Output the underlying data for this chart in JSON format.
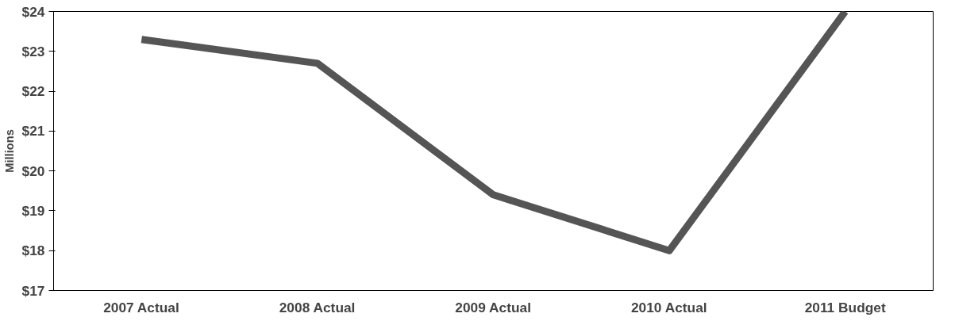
{
  "chart_data": {
    "type": "line",
    "ylabel": "Millions",
    "categories": [
      "2007 Actual",
      "2008 Actual",
      "2009 Actual",
      "2010 Actual",
      "2011 Budget"
    ],
    "series": [
      {
        "color": "#555555",
        "values": [
          23.3,
          22.7,
          19.4,
          18.0,
          24.0
        ]
      }
    ],
    "ylim": [
      17,
      24
    ],
    "yticks": [
      {
        "value": 17,
        "label": "$17"
      },
      {
        "value": 18,
        "label": "$18"
      },
      {
        "value": 19,
        "label": "$19"
      },
      {
        "value": 20,
        "label": "$20"
      },
      {
        "value": 21,
        "label": "$21"
      },
      {
        "value": 22,
        "label": "$22"
      },
      {
        "value": 23,
        "label": "$23"
      },
      {
        "value": 24,
        "label": "$24"
      }
    ],
    "grid": false,
    "marker": "none",
    "line_style": "solid"
  }
}
